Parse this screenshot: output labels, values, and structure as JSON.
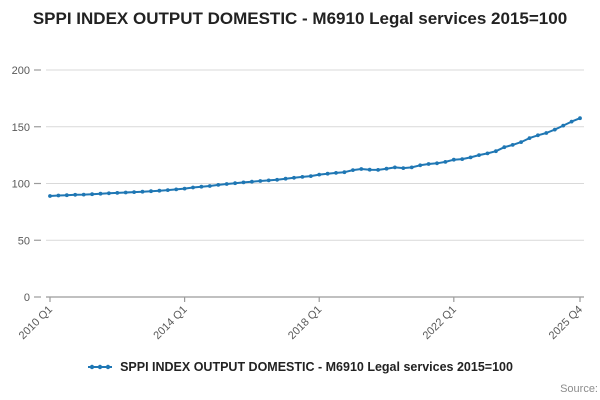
{
  "title": {
    "text": "SPPI INDEX OUTPUT DOMESTIC - M6910 Legal services 2015=100"
  },
  "legend": {
    "label": "SPPI INDEX OUTPUT DOMESTIC - M6910 Legal services 2015=100"
  },
  "source_label": "Source:",
  "colors": {
    "line": "#1f77b4",
    "grid": "#d9d9d9",
    "axis": "#9b9b9b",
    "tick_text": "#595959"
  },
  "chart_data": {
    "type": "line",
    "title": "SPPI INDEX OUTPUT DOMESTIC - M6910 Legal services 2015=100",
    "xlabel": "",
    "ylabel": "",
    "ylim": [
      0,
      200
    ],
    "y_ticks": [
      0,
      50,
      100,
      150,
      200
    ],
    "grid": true,
    "legend_position": "bottom",
    "x_tick_labels": [
      "2010 Q1",
      "2014 Q1",
      "2018 Q1",
      "2022 Q1",
      "2025 Q4"
    ],
    "x_tick_indices": [
      0,
      16,
      32,
      48,
      63
    ],
    "x": [
      "2010 Q1",
      "2010 Q2",
      "2010 Q3",
      "2010 Q4",
      "2011 Q1",
      "2011 Q2",
      "2011 Q3",
      "2011 Q4",
      "2012 Q1",
      "2012 Q2",
      "2012 Q3",
      "2012 Q4",
      "2013 Q1",
      "2013 Q2",
      "2013 Q3",
      "2013 Q4",
      "2014 Q1",
      "2014 Q2",
      "2014 Q3",
      "2014 Q4",
      "2015 Q1",
      "2015 Q2",
      "2015 Q3",
      "2015 Q4",
      "2016 Q1",
      "2016 Q2",
      "2016 Q3",
      "2016 Q4",
      "2017 Q1",
      "2017 Q2",
      "2017 Q3",
      "2017 Q4",
      "2018 Q1",
      "2018 Q2",
      "2018 Q3",
      "2018 Q4",
      "2019 Q1",
      "2019 Q2",
      "2019 Q3",
      "2019 Q4",
      "2020 Q1",
      "2020 Q2",
      "2020 Q3",
      "2020 Q4",
      "2021 Q1",
      "2021 Q2",
      "2021 Q3",
      "2021 Q4",
      "2022 Q1",
      "2022 Q2",
      "2022 Q3",
      "2022 Q4",
      "2023 Q1",
      "2023 Q2",
      "2023 Q3",
      "2023 Q4",
      "2024 Q1",
      "2024 Q2",
      "2024 Q3",
      "2024 Q4",
      "2025 Q1",
      "2025 Q2",
      "2025 Q3",
      "2025 Q4"
    ],
    "series": [
      {
        "name": "SPPI INDEX OUTPUT DOMESTIC - M6910 Legal services 2015=100",
        "values": [
          89.0,
          89.4,
          89.7,
          90.0,
          90.2,
          90.6,
          91.0,
          91.4,
          91.7,
          92.1,
          92.4,
          92.8,
          93.2,
          93.7,
          94.2,
          94.8,
          95.5,
          96.5,
          97.2,
          97.8,
          98.8,
          99.6,
          100.3,
          101.0,
          101.6,
          102.2,
          102.7,
          103.3,
          104.2,
          105.0,
          105.8,
          106.5,
          107.8,
          108.6,
          109.3,
          110.0,
          111.8,
          112.8,
          112.2,
          112.0,
          113.0,
          114.2,
          113.6,
          114.2,
          116.0,
          117.2,
          117.8,
          119.0,
          121.0,
          121.5,
          123.0,
          125.0,
          126.5,
          128.5,
          132.0,
          134.0,
          136.5,
          140.0,
          142.5,
          144.5,
          147.5,
          151.0,
          154.5,
          157.5
        ]
      }
    ]
  }
}
